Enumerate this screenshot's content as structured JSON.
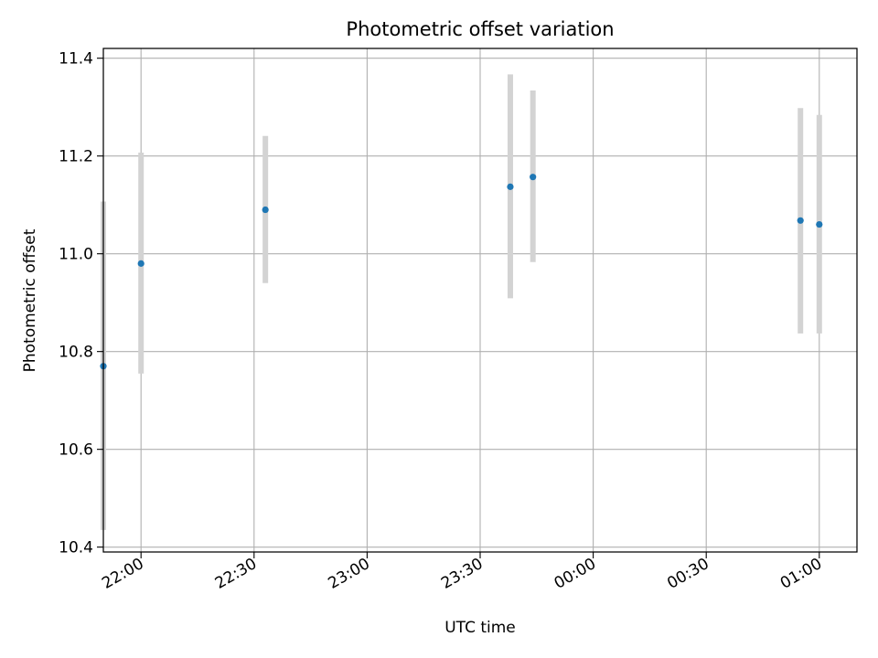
{
  "chart_data": {
    "type": "scatter",
    "title": "Photometric offset variation",
    "xlabel": "UTC time",
    "ylabel": "Photometric offset",
    "x_axis_type": "time",
    "xlim": [
      "21:50",
      "01:10"
    ],
    "ylim": [
      10.39,
      11.42
    ],
    "x_ticks": [
      "22:00",
      "22:30",
      "23:00",
      "23:30",
      "00:00",
      "00:30",
      "01:00"
    ],
    "y_ticks": [
      "10.4",
      "10.6",
      "10.8",
      "11.0",
      "11.2",
      "11.4"
    ],
    "grid": true,
    "point_color": "#1f77b4",
    "errorbar_color": "#d3d3d3",
    "points": [
      {
        "x": "21:50",
        "y": 10.77,
        "ymin": 10.435,
        "ymax": 11.107
      },
      {
        "x": "22:00",
        "y": 10.98,
        "ymin": 10.755,
        "ymax": 11.207
      },
      {
        "x": "22:33",
        "y": 11.09,
        "ymin": 10.94,
        "ymax": 11.241
      },
      {
        "x": "23:38",
        "y": 11.137,
        "ymin": 10.909,
        "ymax": 11.367
      },
      {
        "x": "23:44",
        "y": 11.157,
        "ymin": 10.983,
        "ymax": 11.334
      },
      {
        "x": "00:55",
        "y": 11.068,
        "ymin": 10.837,
        "ymax": 11.298
      },
      {
        "x": "01:00",
        "y": 11.06,
        "ymin": 10.837,
        "ymax": 11.284
      }
    ]
  }
}
